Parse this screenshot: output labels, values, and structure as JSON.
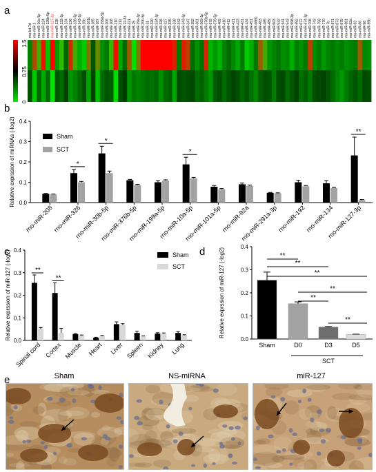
{
  "panel_letters": [
    "a",
    "b",
    "c",
    "d",
    "e"
  ],
  "heatmap": {
    "mirnas": [
      "rno-let-7d",
      "rno-miR-1",
      "rno-miR-10a-5p",
      "rno-miR-124",
      "rno-miR-125b-5p",
      "rno-miR-127-3p",
      "rno-miR-128",
      "rno-miR-132-3p",
      "rno-miR-134",
      "rno-miR-136",
      "rno-miR-138-5p",
      "rno-miR-143-3p",
      "rno-miR-15b",
      "rno-miR-181c",
      "rno-miR-185",
      "rno-miR-187",
      "rno-miR-199a-5p",
      "rno-miR-206",
      "rno-miR-208",
      "rno-miR-210",
      "rno-miR-211",
      "rno-miR-22-3p",
      "rno-miR-221",
      "rno-miR-25",
      "rno-miR-29a-3p",
      "rno-miR-30b-5p",
      "rno-miR-31",
      "rno-miR-320",
      "rno-miR-324-3p",
      "rno-miR-326",
      "rno-miR-327",
      "rno-miR-335",
      "rno-miR-338",
      "rno-miR-342",
      "rno-miR-343-3p",
      "rno-miR-347",
      "rno-miR-352",
      "rno-miR-361",
      "rno-miR-369-3p",
      "rno-miR-376b-5p",
      "rno-miR-378",
      "rno-miR-379-5p",
      "rno-miR-409",
      "rno-miR-410",
      "rno-miR-411",
      "rno-miR-421",
      "rno-miR-423",
      "rno-miR-431",
      "rno-miR-434",
      "rno-miR-451",
      "rno-miR-466b",
      "rno-miR-483",
      "rno-miR-485",
      "rno-miR-489",
      "rno-miR-503",
      "rno-miR-532",
      "rno-miR-541",
      "rno-miR-543",
      "rno-miR-598-3p",
      "rno-miR-652",
      "rno-miR-672",
      "rno-miR-674-3p",
      "rno-miR-708",
      "rno-miR-743",
      "rno-miR-758",
      "rno-miR-770",
      "rno-miR-7b",
      "rno-miR-871",
      "rno-miR-873",
      "rno-miR-879",
      "rno-miR-881",
      "rno-miR-92a",
      "rno-miR-93",
      "rno-miR-96",
      "rno-miR-98",
      "rno-miR-99b"
    ],
    "highlight": "rno-miR-127-3p",
    "highlight_color": "#e8302a",
    "scale_ticks": [
      "1.5",
      "0.75",
      "0"
    ],
    "row1": [
      0.38,
      1.25,
      0.95,
      1.42,
      0.61,
      1.5,
      0.46,
      0.88,
      0.28,
      1.35,
      0.95,
      0.52,
      0.62,
      1.12,
      0.22,
      1.05,
      0.42,
      0.35,
      0.9,
      1.45,
      0.5,
      0.3,
      1.2,
      0.7,
      1.1,
      1.5,
      1.5,
      1.5,
      1.5,
      1.5,
      1.5,
      1.5,
      1.4,
      0.35,
      1.4,
      1.3,
      0.3,
      0.42,
      0.32,
      1.38,
      0.55,
      0.45,
      0.55,
      0.38,
      0.3,
      0.4,
      0.5,
      0.35,
      0.62,
      0.52,
      0.35,
      1.2,
      0.95,
      0.45,
      0.38,
      0.33,
      0.42,
      0.4,
      0.52,
      0.36,
      0.42,
      0.35,
      1.3,
      0.42,
      0.35,
      0.45,
      0.38,
      0.34,
      0.4,
      0.35,
      0.42,
      0.38,
      0.35,
      1.2,
      0.4,
      0.42
    ],
    "row2": [
      0.2,
      0.62,
      0.28,
      0.5,
      0.3,
      0.75,
      0.22,
      0.3,
      0.16,
      0.45,
      0.38,
      0.3,
      0.2,
      0.5,
      0.16,
      0.58,
      0.3,
      0.22,
      0.25,
      0.68,
      0.2,
      0.14,
      0.44,
      0.34,
      0.38,
      0.34,
      0.3,
      0.32,
      0.28,
      0.42,
      0.3,
      0.26,
      0.5,
      0.18,
      0.22,
      0.2,
      0.18,
      0.3,
      0.26,
      0.35,
      0.44,
      0.24,
      0.2,
      0.3,
      0.22,
      0.16,
      0.2,
      0.28,
      0.22,
      0.32,
      0.4,
      0.25,
      0.2,
      0.22,
      0.35,
      0.2,
      0.18,
      0.3,
      0.22,
      0.16,
      0.32,
      0.25,
      0.34,
      0.2,
      0.18,
      0.16,
      0.22,
      0.3,
      0.38,
      0.45,
      0.35,
      0.28,
      0.22,
      0.3,
      0.18,
      0.2
    ]
  },
  "chart_data": [
    {
      "type": "bar",
      "panel": "b",
      "ylabel": "Relative exprssion of miRNAs (-log2)",
      "ylim": [
        0,
        0.4
      ],
      "yticks": [
        "0.0",
        "0.1",
        "0.2",
        "0.3",
        "0.4"
      ],
      "legend": "top-left",
      "categories": [
        "rno-miR-208",
        "rno-miR-326",
        "rno-miR-30b-5p",
        "rno-miR-376b-5p",
        "rno-miR-199a-5p",
        "rno-miR-10a-5p",
        "rno-miR-101a-5p",
        "rno-miR-92a",
        "rno-miR-291a-3p",
        "rno-miR-192",
        "rno-miR-134",
        "rno-miR-127-3p"
      ],
      "series": [
        {
          "name": "Sham",
          "color": "#000000",
          "values": [
            0.043,
            0.145,
            0.242,
            0.11,
            0.1,
            0.188,
            0.078,
            0.09,
            0.048,
            0.1,
            0.095,
            0.232
          ],
          "errors": [
            0.002,
            0.018,
            0.035,
            0.004,
            0.008,
            0.035,
            0.006,
            0.006,
            0.002,
            0.01,
            0.013,
            0.09
          ]
        },
        {
          "name": "SCT",
          "color": "#a3a3a3",
          "values": [
            0.04,
            0.1,
            0.145,
            0.087,
            0.108,
            0.12,
            0.066,
            0.082,
            0.046,
            0.08,
            0.072,
            0.012
          ],
          "errors": [
            0.002,
            0.004,
            0.01,
            0.003,
            0.004,
            0.004,
            0.003,
            0.004,
            0.002,
            0.004,
            0.003,
            0.003
          ]
        }
      ],
      "significance": [
        {
          "category": "rno-miR-326",
          "label": "*"
        },
        {
          "category": "rno-miR-30b-5p",
          "label": "*"
        },
        {
          "category": "rno-miR-10a-5p",
          "label": "*"
        },
        {
          "category": "rno-miR-127-3p",
          "label": "**"
        }
      ]
    },
    {
      "type": "bar",
      "panel": "c",
      "ylabel": "Relative exprssion of miR-127 (-log2)",
      "ylim": [
        0,
        0.4
      ],
      "yticks": [
        "0.0",
        "0.1",
        "0.2",
        "0.3",
        "0.4"
      ],
      "legend": "top-right",
      "categories": [
        "Spinal cord",
        "Cortex",
        "Muscle",
        "Heart",
        "Liver",
        "Spleen",
        "Kidney",
        "Lung"
      ],
      "series": [
        {
          "name": "Sham",
          "color": "#000000",
          "values": [
            0.255,
            0.21,
            0.028,
            0.012,
            0.072,
            0.033,
            0.03,
            0.033
          ],
          "errors": [
            0.035,
            0.045,
            0.002,
            0.002,
            0.01,
            0.008,
            0.004,
            0.006
          ]
        },
        {
          "name": "SCT",
          "color": "#d8d8d8",
          "values": [
            0.052,
            0.033,
            0.022,
            0.02,
            0.068,
            0.018,
            0.03,
            0.022
          ],
          "errors": [
            0.005,
            0.02,
            0.002,
            0.002,
            0.006,
            0.002,
            0.003,
            0.003
          ]
        }
      ],
      "significance": [
        {
          "category": "Spinal cord",
          "label": "**"
        },
        {
          "category": "Cortex",
          "label": "**"
        }
      ]
    },
    {
      "type": "bar",
      "panel": "d",
      "ylabel": "Relative exprssion of miR-127 (-log2)",
      "ylim": [
        0,
        0.4
      ],
      "yticks": [
        "0.0",
        "0.1",
        "0.2",
        "0.3",
        "0.4"
      ],
      "categories": [
        "Sham",
        "D0",
        "D3",
        "D5"
      ],
      "group_label": "SCT",
      "values": [
        0.255,
        0.153,
        0.052,
        0.02
      ],
      "errors": [
        0.035,
        0.008,
        0.002,
        0.001
      ],
      "colors": [
        "#000000",
        "#a3a3a3",
        "#6e6e6e",
        "#dcdcdc"
      ],
      "comparisons": [
        {
          "from": "Sham",
          "to": "D0",
          "label": "**"
        },
        {
          "from": "Sham",
          "to": "D3",
          "label": "**"
        },
        {
          "from": "Sham",
          "to": "D5",
          "label": "**"
        },
        {
          "from": "D0",
          "to": "D3",
          "label": "**"
        },
        {
          "from": "D0",
          "to": "D5",
          "label": "**"
        },
        {
          "from": "D3",
          "to": "D5",
          "label": "**"
        }
      ]
    }
  ],
  "micrographs": [
    {
      "title": "Sham",
      "tint": "#b58d5f"
    },
    {
      "title": "NS-miRNA",
      "tint": "#c9aa7f"
    },
    {
      "title": "miR-127",
      "tint": "#c7a177"
    }
  ]
}
